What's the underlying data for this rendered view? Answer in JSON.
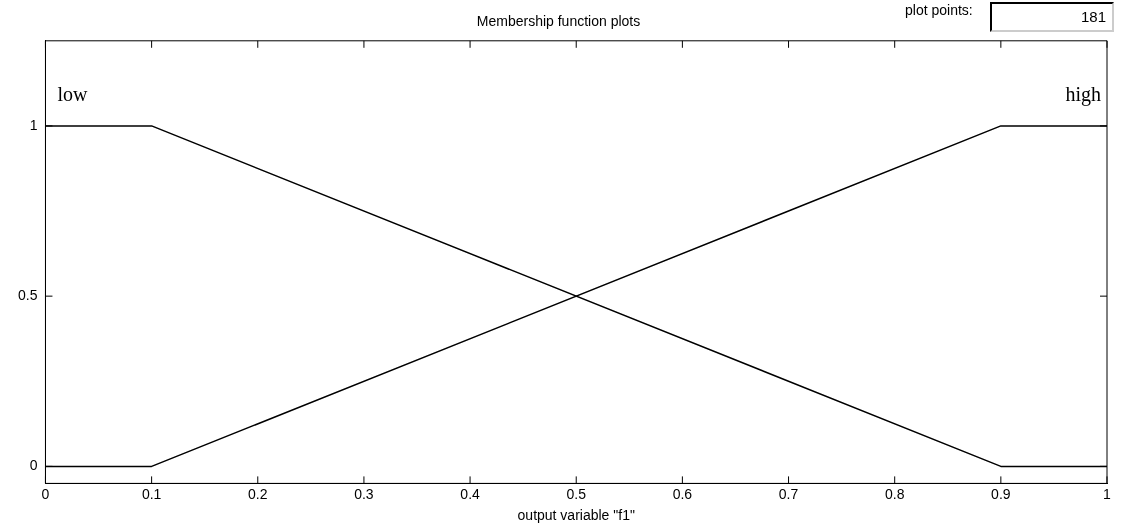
{
  "chart_data": {
    "type": "line",
    "title": "Membership function plots",
    "xlabel": "output variable \"f1\"",
    "annotations": [
      "plot points:",
      "181"
    ],
    "series": [
      {
        "name": "low",
        "color": "#000000",
        "x": [
          0,
          0.1,
          0.9,
          1
        ],
        "values": [
          1,
          1,
          0,
          0
        ]
      },
      {
        "name": "high",
        "color": "#000000",
        "x": [
          0,
          0.1,
          0.9,
          1
        ],
        "values": [
          0,
          0,
          1,
          1
        ]
      }
    ],
    "xlim": [
      0,
      1
    ],
    "xticks": [
      0,
      0.1,
      0.2,
      0.3,
      0.4,
      0.5,
      0.6,
      0.7,
      0.8,
      0.9,
      1
    ],
    "ylim": [
      -0.05,
      1.25
    ],
    "yticks": [
      0,
      0.5,
      1
    ],
    "grid": false,
    "legend": false,
    "marker": "none",
    "line_style": "solid"
  }
}
